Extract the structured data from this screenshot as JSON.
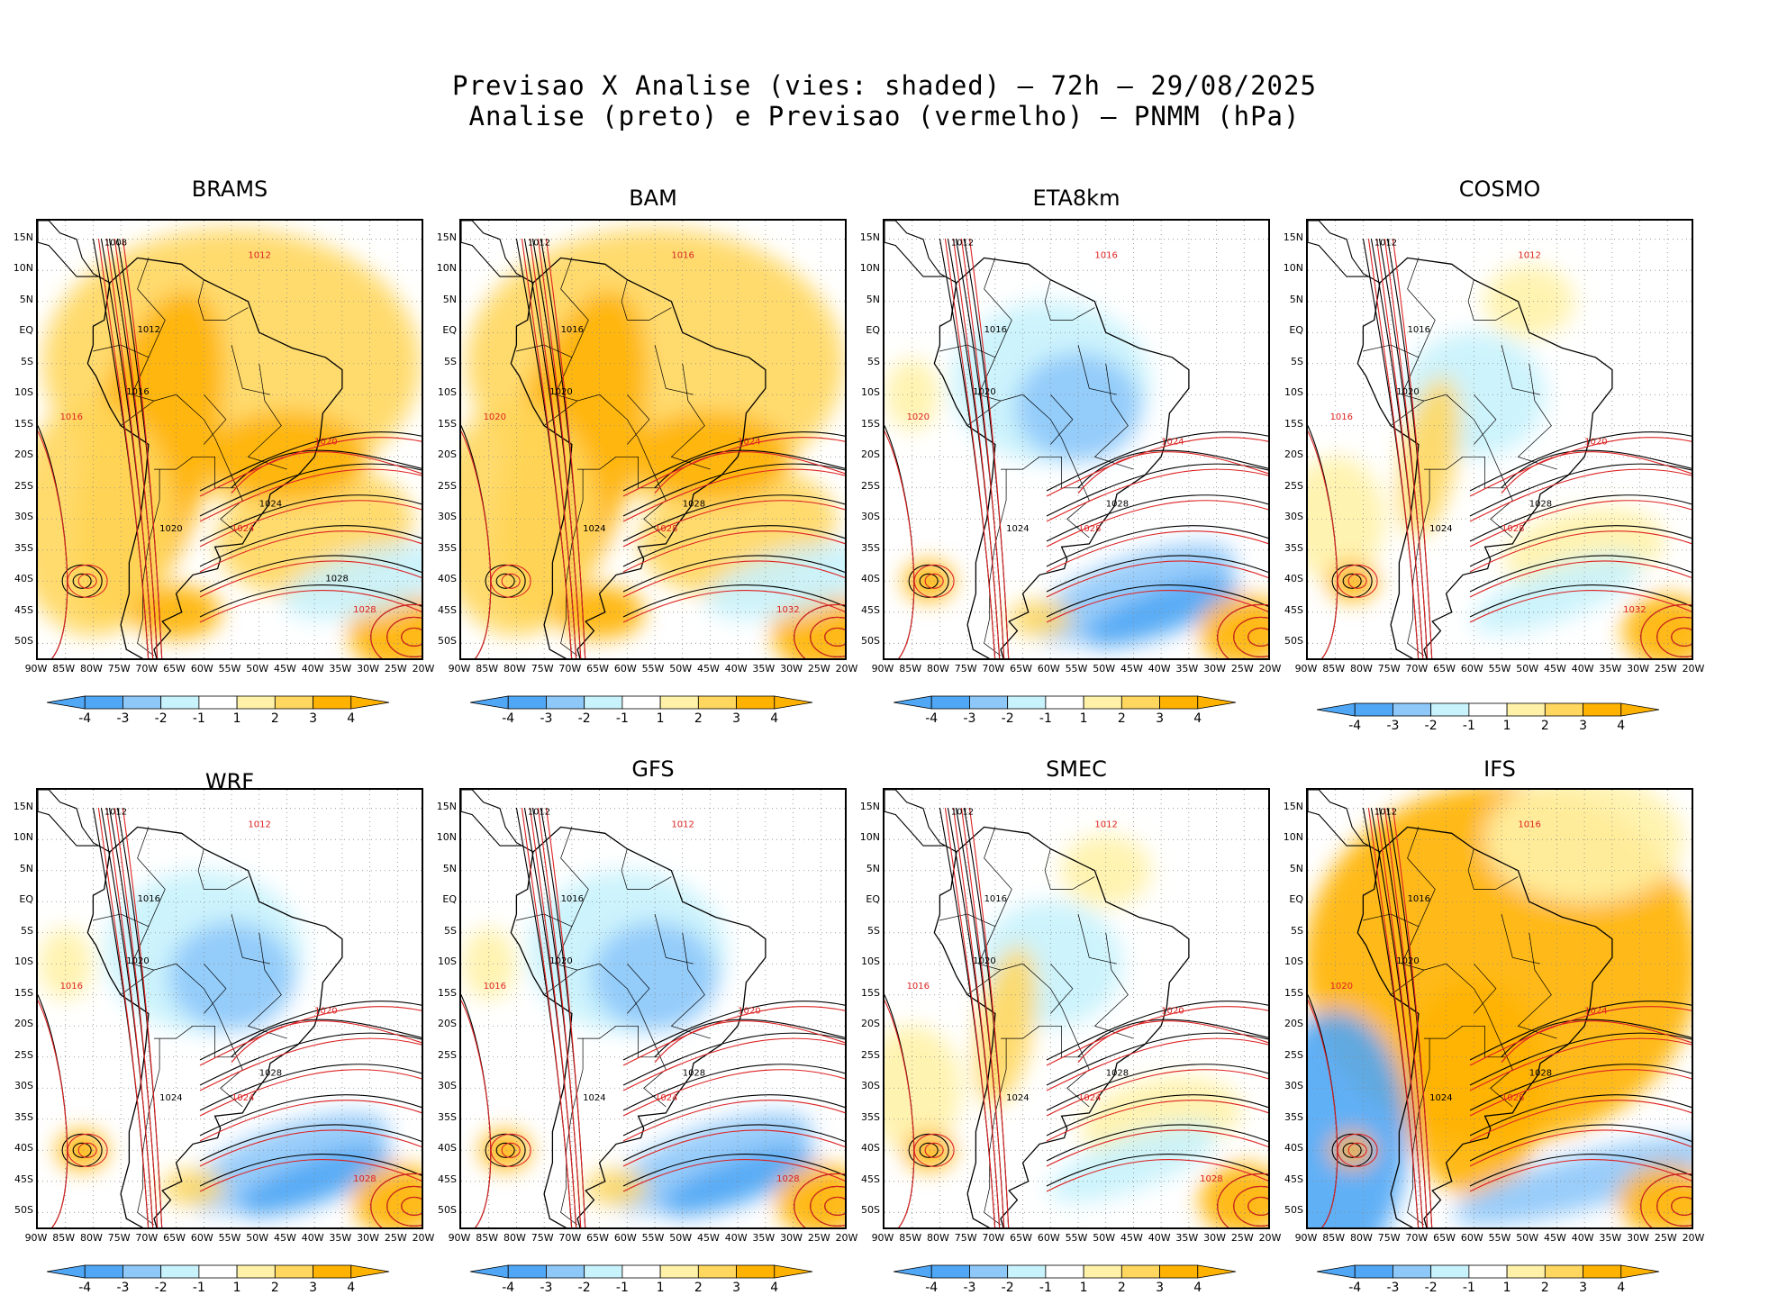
{
  "title": {
    "line1": "Previsao X Analise (vies: shaded) – 72h – 29/08/2025",
    "line2": "Analise (preto) e Previsao (vermelho) – PNMM (hPa)"
  },
  "colors": {
    "bias": [
      "#4fa7f5",
      "#8ec8f9",
      "#c8f2fc",
      "#ffffff",
      "#fff2a8",
      "#ffd75e",
      "#ffb300"
    ],
    "analysis_contour": "#000000",
    "forecast_contour": "#dd2222"
  },
  "axes": {
    "lat_labels": [
      "15N",
      "10N",
      "5N",
      "EQ",
      "5S",
      "10S",
      "15S",
      "20S",
      "25S",
      "30S",
      "35S",
      "40S",
      "45S",
      "50S"
    ],
    "lon_labels": [
      "90W",
      "85W",
      "80W",
      "75W",
      "70W",
      "65W",
      "60W",
      "55W",
      "50W",
      "45W",
      "40W",
      "35W",
      "30W",
      "25W",
      "20W"
    ]
  },
  "colorbar_labels": [
    "-4",
    "-3",
    "-2",
    "-1",
    "1",
    "2",
    "3",
    "4"
  ],
  "panels": [
    {
      "name": "BRAMS",
      "bias": "warm",
      "black_labels": [
        "1008",
        "1012",
        "1016",
        "1020",
        "1024",
        "1028"
      ],
      "red_labels": [
        "1012",
        "1016",
        "1020",
        "1024",
        "1028"
      ]
    },
    {
      "name": "BAM",
      "bias": "warm",
      "black_labels": [
        "1012",
        "1016",
        "1020",
        "1024",
        "1028"
      ],
      "red_labels": [
        "1016",
        "1020",
        "1024",
        "1028",
        "1032"
      ]
    },
    {
      "name": "ETA8km",
      "bias": "cool",
      "black_labels": [
        "1012",
        "1016",
        "1020",
        "1024",
        "1028"
      ],
      "red_labels": [
        "1016",
        "1020",
        "1024",
        "1028"
      ]
    },
    {
      "name": "COSMO",
      "bias": "mixed",
      "black_labels": [
        "1012",
        "1016",
        "1020",
        "1024",
        "1028"
      ],
      "red_labels": [
        "1012",
        "1016",
        "1020",
        "1028",
        "1032"
      ]
    },
    {
      "name": "WRF",
      "bias": "cool",
      "black_labels": [
        "1012",
        "1016",
        "1020",
        "1024",
        "1028"
      ],
      "red_labels": [
        "1012",
        "1016",
        "1020",
        "1024",
        "1028"
      ]
    },
    {
      "name": "GFS",
      "bias": "cool",
      "black_labels": [
        "1012",
        "1016",
        "1020",
        "1024",
        "1028"
      ],
      "red_labels": [
        "1012",
        "1016",
        "1020",
        "1024",
        "1028"
      ]
    },
    {
      "name": "SMEC",
      "bias": "mixed",
      "black_labels": [
        "1012",
        "1016",
        "1020",
        "1024",
        "1028"
      ],
      "red_labels": [
        "1012",
        "1016",
        "1020",
        "1024",
        "1028"
      ]
    },
    {
      "name": "IFS",
      "bias": "strong-warm",
      "black_labels": [
        "1012",
        "1016",
        "1020",
        "1024",
        "1028"
      ],
      "red_labels": [
        "1016",
        "1020",
        "1024",
        "1028"
      ]
    }
  ]
}
